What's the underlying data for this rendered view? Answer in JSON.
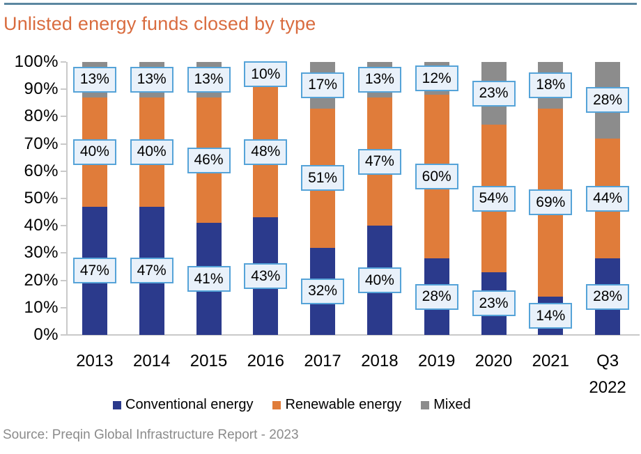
{
  "page": {
    "title": "Unlisted energy funds closed by type",
    "source": "Source: Preqin Global Infrastructure Report - 2023"
  },
  "colors": {
    "title_text": "#D96C3F",
    "top_rule": "#5B87A0",
    "conventional": "#2B3A8C",
    "renewable": "#E07C3A",
    "mixed": "#8C8C8C",
    "label_box_fill": "#E9F1FA",
    "label_box_border": "#55A3D8",
    "axis_line": "#C9C9C9",
    "source_text": "#8B8B8B",
    "tick_text": "#000000"
  },
  "chart_data": {
    "type": "bar",
    "stacked": true,
    "percent_stacked": true,
    "title": "Unlisted energy funds closed by type",
    "xlabel": "",
    "ylabel": "",
    "categories": [
      "2013",
      "2014",
      "2015",
      "2016",
      "2017",
      "2018",
      "2019",
      "2020",
      "2021",
      "Q3 2022"
    ],
    "series": [
      {
        "name": "Conventional energy",
        "color_key": "conventional",
        "values": [
          47,
          47,
          41,
          43,
          32,
          40,
          28,
          23,
          14,
          28
        ]
      },
      {
        "name": "Renewable energy",
        "color_key": "renewable",
        "values": [
          40,
          40,
          46,
          48,
          51,
          47,
          60,
          54,
          69,
          44
        ]
      },
      {
        "name": "Mixed",
        "color_key": "mixed",
        "values": [
          13,
          13,
          13,
          10,
          17,
          13,
          12,
          23,
          18,
          28
        ]
      }
    ],
    "data_labels": true,
    "data_label_format": "{value}%",
    "y_axis": {
      "min": 0,
      "max": 100,
      "step": 10,
      "tick_format": "{value}%"
    },
    "y_tick_labels": [
      "0%",
      "10%",
      "20%",
      "30%",
      "40%",
      "50%",
      "60%",
      "70%",
      "80%",
      "90%",
      "100%"
    ],
    "legend": [
      "Conventional energy",
      "Renewable energy",
      "Mixed"
    ],
    "legend_position": "bottom",
    "grid": false
  }
}
